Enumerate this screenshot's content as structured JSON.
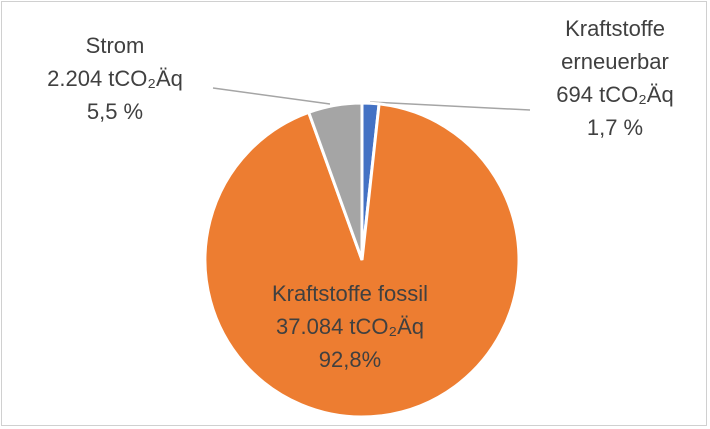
{
  "chart_data": {
    "type": "pie",
    "categories": [
      "Kraftstoffe erneuerbar",
      "Kraftstoffe fossil",
      "Strom"
    ],
    "values": [
      694,
      37084,
      2204
    ],
    "value_labels": [
      "694  tCO₂Äq",
      "37.084 tCO₂Äq",
      "2.204  tCO₂Äq"
    ],
    "percent_labels": [
      "1,7 %",
      "92,8%",
      "5,5 %"
    ],
    "colors": [
      "#4472c4",
      "#ed7d31",
      "#a5a5a5"
    ]
  }
}
